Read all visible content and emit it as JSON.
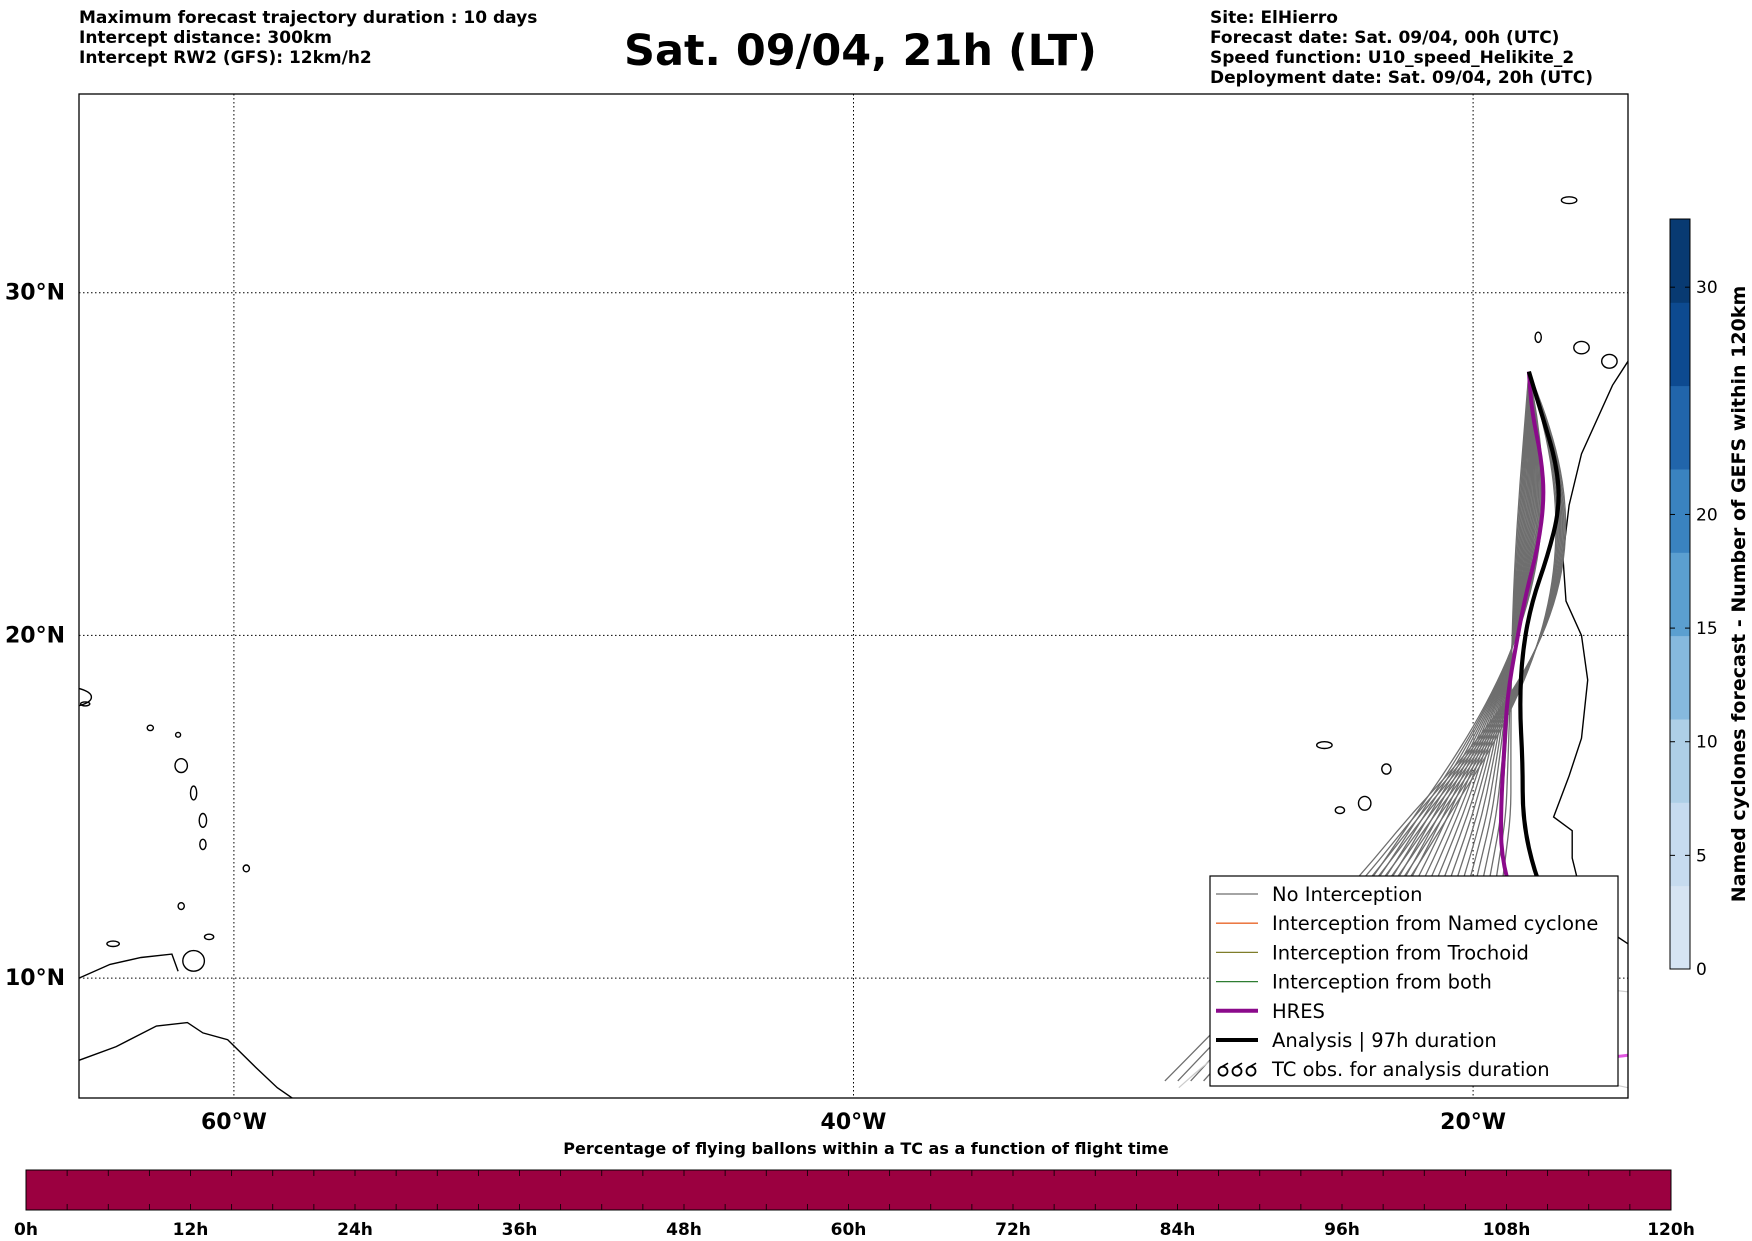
{
  "header": {
    "title": "Sat. 09/04, 21h (LT)",
    "left_lines": [
      "Maximum forecast trajectory duration : 10 days",
      "Intercept distance: 300km",
      "Intercept RW2 (GFS):  12km/h2"
    ],
    "right_lines": [
      "Site: ElHierro",
      "Forecast date: Sat. 09/04, 00h (UTC)",
      "Speed function: U10_speed_Helikite_2",
      "Deployment date: Sat. 09/04, 20h (UTC)"
    ]
  },
  "map": {
    "lat_labels": [
      "30°N",
      "20°N",
      "10°N"
    ],
    "lon_labels": [
      "60°W",
      "40°W",
      "20°W"
    ],
    "lat_values": [
      30,
      20,
      10
    ],
    "lon_values": [
      -60,
      -40,
      -20
    ],
    "lon_range": [
      -65,
      -15
    ],
    "lat_range": [
      6.5,
      35.8
    ],
    "grid": "dotted",
    "launch_site": {
      "lon": -18.2,
      "lat": 27.7
    },
    "colors": {
      "no_interception": "#6e6e6e",
      "named_cyclone": "#e8662a",
      "trochoid": "#7f7d2a",
      "both": "#2e7d32",
      "hres": "#8b0a8b",
      "analysis": "#000000",
      "land_outline": "#000000",
      "extra_track": "#cccccc",
      "extra_magenta": "#e055e0"
    },
    "hres_track": [
      [
        -18.2,
        27.7
      ],
      [
        -18.1,
        26.5
      ],
      [
        -17.8,
        25.2
      ],
      [
        -17.7,
        24.0
      ],
      [
        -17.9,
        22.6
      ],
      [
        -18.3,
        21.2
      ],
      [
        -18.6,
        19.8
      ],
      [
        -18.9,
        18.2
      ],
      [
        -19.0,
        16.6
      ],
      [
        -19.1,
        15.0
      ],
      [
        -19.1,
        13.6
      ],
      [
        -18.7,
        12.2
      ],
      [
        -18.4,
        10.9
      ]
    ],
    "analysis_track": [
      [
        -18.2,
        27.7
      ],
      [
        -17.8,
        26.5
      ],
      [
        -17.3,
        25.0
      ],
      [
        -17.2,
        23.7
      ],
      [
        -17.6,
        22.3
      ],
      [
        -18.1,
        21.0
      ],
      [
        -18.4,
        19.6
      ],
      [
        -18.5,
        18.0
      ],
      [
        -18.4,
        16.3
      ],
      [
        -18.4,
        14.6
      ],
      [
        -18.0,
        13.0
      ],
      [
        -17.4,
        11.8
      ],
      [
        -16.9,
        10.7
      ]
    ]
  },
  "legend": {
    "items": [
      {
        "label": "No Interception",
        "style": "no_interception"
      },
      {
        "label": "Interception from Named cyclone",
        "style": "named_cyclone"
      },
      {
        "label": "Interception from Trochoid",
        "style": "trochoid"
      },
      {
        "label": "Interception from both",
        "style": "both"
      },
      {
        "label": "HRES",
        "style": "hres"
      },
      {
        "label": "Analysis | 97h duration",
        "style": "analysis"
      },
      {
        "label": "TC obs. for analysis duration",
        "style": "tc_obs"
      }
    ],
    "placement": "bottom-right"
  },
  "colorbar_right": {
    "label": "Named cyclones forecast - Number of GEFS within 120km",
    "ticks": [
      "0",
      "5",
      "10",
      "15",
      "20",
      "30"
    ],
    "tick_values": [
      0,
      5,
      10,
      15,
      20,
      30
    ],
    "range": [
      0,
      33
    ],
    "colors": [
      "#d6e4f3",
      "#c6dbef",
      "#aecfe6",
      "#86b9de",
      "#5b9fd0",
      "#3a83c0",
      "#2165ab",
      "#0d4a90",
      "#083a72"
    ]
  },
  "colorbar_bottom": {
    "label": "Percentage of flying ballons within a TC as a function of flight time",
    "ticks": [
      "0h",
      "12h",
      "24h",
      "36h",
      "48h",
      "60h",
      "72h",
      "84h",
      "96h",
      "108h",
      "120h"
    ],
    "tick_values": [
      0,
      12,
      24,
      36,
      48,
      60,
      72,
      84,
      96,
      108,
      120
    ],
    "color": "#9b0040"
  }
}
